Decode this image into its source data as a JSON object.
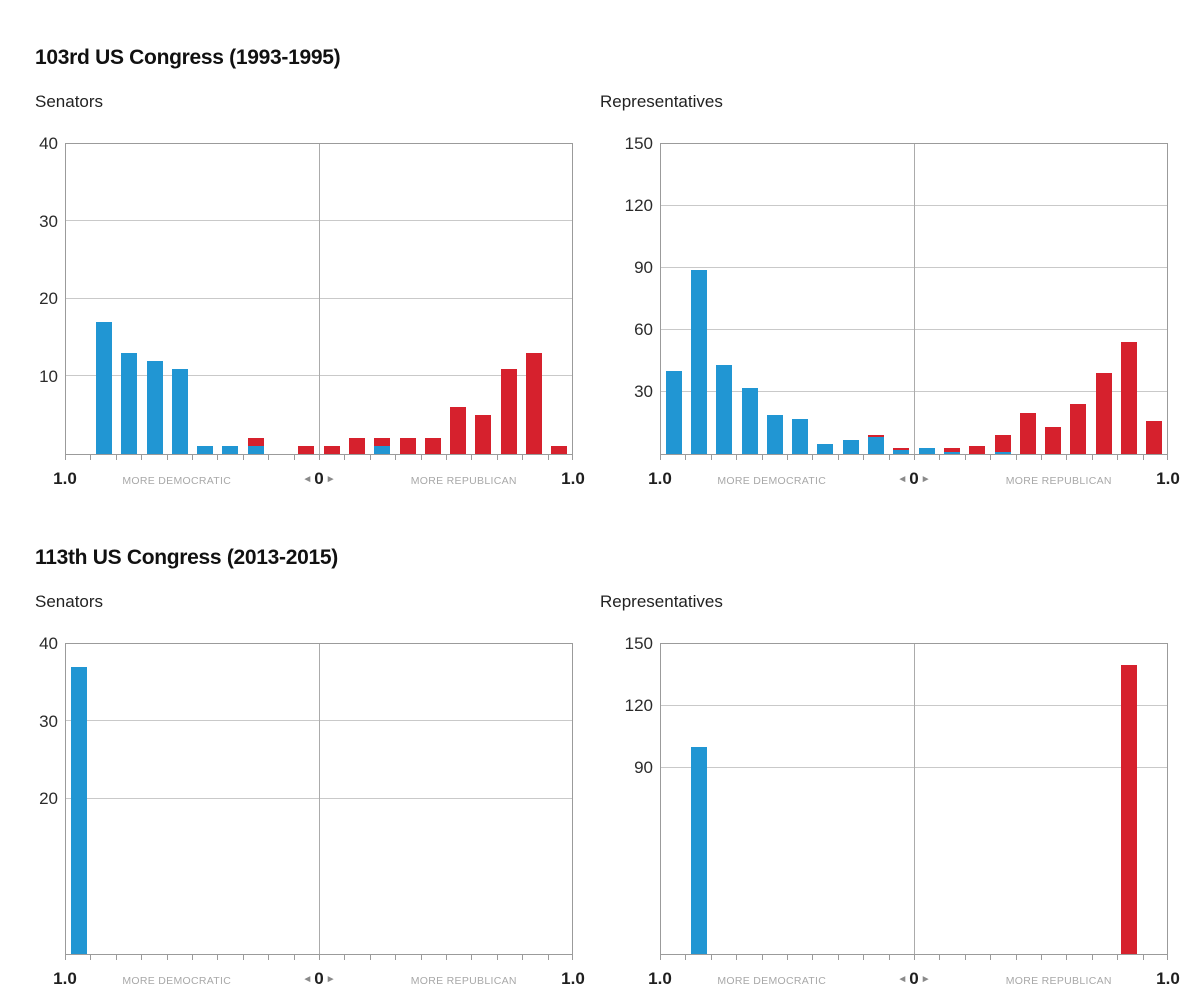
{
  "sections": [
    {
      "title": "103rd US Congress (1993-1995)"
    },
    {
      "title": "113th US Congress (2013-2015)"
    }
  ],
  "colors": {
    "democratic": "#2196d3",
    "republican": "#d6212d",
    "gridline": "#c9c9c9",
    "center_line": "#ababab",
    "plot_border": "#9b9b9b",
    "muted_label": "#a8a8a8",
    "dark_label": "#1f1f1f"
  },
  "axis_glyphs": {
    "arrow_left": "◄",
    "arrow_right": "►"
  },
  "chart_data": [
    {
      "type": "bar",
      "title": "Senators",
      "section": "103rd US Congress (1993-1995)",
      "ymax": 40,
      "yticks": [
        40,
        30,
        20,
        10
      ],
      "bins": 20,
      "x_bin_range": [
        -1.0,
        1.0
      ],
      "xticklabels": [
        "1.0",
        "MORE DEMOCRATIC",
        "0",
        "MORE REPUBLICAN",
        "1.0"
      ],
      "series": [
        {
          "name": "Democratic",
          "color_key": "democratic",
          "values": [
            0,
            17,
            13,
            12,
            11,
            1,
            1,
            1,
            0,
            0,
            0,
            0,
            1,
            0,
            0,
            0,
            0,
            0,
            0,
            0
          ]
        },
        {
          "name": "Republican",
          "color_key": "republican",
          "values": [
            0,
            0,
            0,
            0,
            0,
            0,
            0,
            1,
            0,
            1,
            1,
            2,
            1,
            2,
            2,
            6,
            5,
            11,
            13,
            1
          ]
        }
      ]
    },
    {
      "type": "bar",
      "title": "Representatives",
      "section": "103rd US Congress (1993-1995)",
      "ymax": 150,
      "yticks": [
        150,
        120,
        90,
        60,
        30
      ],
      "bins": 20,
      "x_bin_range": [
        -1.0,
        1.0
      ],
      "xticklabels": [
        "1.0",
        "MORE DEMOCRATIC",
        "0",
        "MORE REPUBLICAN",
        "1.0"
      ],
      "series": [
        {
          "name": "Democratic",
          "color_key": "democratic",
          "values": [
            40,
            89,
            43,
            32,
            19,
            17,
            5,
            7,
            8,
            2,
            3,
            1,
            0,
            1,
            0,
            0,
            0,
            0,
            0,
            0
          ]
        },
        {
          "name": "Republican",
          "color_key": "republican",
          "values": [
            0,
            0,
            0,
            0,
            0,
            0,
            0,
            0,
            1,
            1,
            0,
            2,
            4,
            8,
            20,
            13,
            24,
            39,
            54,
            16
          ]
        }
      ]
    },
    {
      "type": "bar",
      "title": "Senators",
      "section": "113th US Congress (2013-2015)",
      "ymax": 40,
      "yticks": [
        40,
        30,
        20
      ],
      "bins": 20,
      "x_bin_range": [
        -1.0,
        1.0
      ],
      "xticklabels": [
        "1.0",
        "MORE DEMOCRATIC",
        "0",
        "MORE REPUBLICAN",
        "1.0"
      ],
      "clipped_by_viewport": true,
      "series": [
        {
          "name": "Democratic",
          "color_key": "democratic",
          "values": [
            37,
            0,
            0,
            0,
            0,
            0,
            0,
            0,
            0,
            0,
            0,
            0,
            0,
            0,
            0,
            0,
            0,
            0,
            0,
            0
          ]
        },
        {
          "name": "Republican",
          "color_key": "republican",
          "values": [
            0,
            0,
            0,
            0,
            0,
            0,
            0,
            0,
            0,
            0,
            0,
            0,
            0,
            0,
            0,
            0,
            0,
            0,
            0,
            0
          ]
        }
      ]
    },
    {
      "type": "bar",
      "title": "Representatives",
      "section": "113th US Congress (2013-2015)",
      "ymax": 150,
      "yticks": [
        150,
        120,
        90
      ],
      "bins": 20,
      "x_bin_range": [
        -1.0,
        1.0
      ],
      "xticklabels": [
        "1.0",
        "MORE DEMOCRATIC",
        "0",
        "MORE REPUBLICAN",
        "1.0"
      ],
      "clipped_by_viewport": true,
      "series": [
        {
          "name": "Democratic",
          "color_key": "democratic",
          "values": [
            0,
            100,
            0,
            0,
            0,
            0,
            0,
            0,
            0,
            0,
            0,
            0,
            0,
            0,
            0,
            0,
            0,
            0,
            0,
            0
          ]
        },
        {
          "name": "Republican",
          "color_key": "republican",
          "values": [
            0,
            0,
            0,
            0,
            0,
            0,
            0,
            0,
            0,
            0,
            0,
            0,
            0,
            0,
            0,
            0,
            0,
            0,
            140,
            0
          ]
        }
      ]
    }
  ]
}
